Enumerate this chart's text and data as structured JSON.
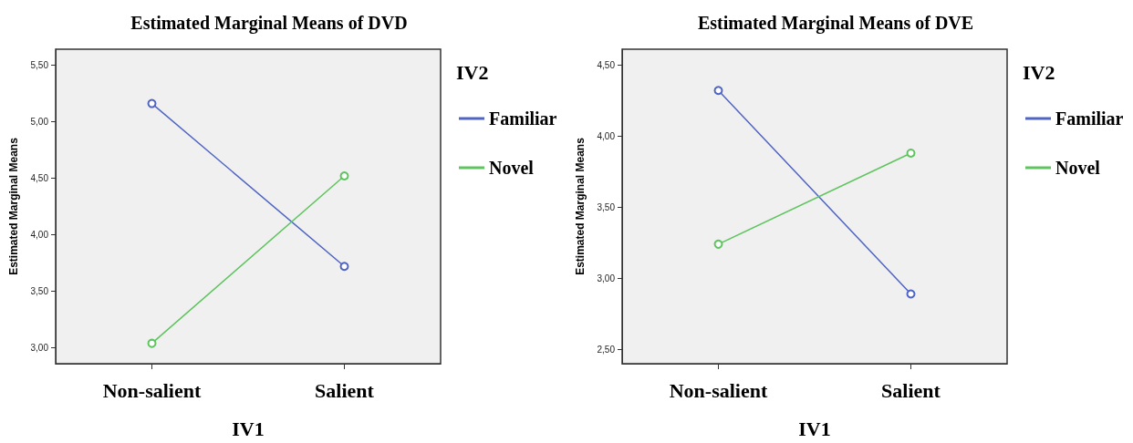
{
  "chart_data": [
    {
      "type": "line",
      "title": "Estimated Marginal Means of DVD",
      "xlabel": "IV1",
      "ylabel": "Estimated Marginal Means",
      "legend_title": "IV2",
      "categories": [
        "Non-salient",
        "Salient"
      ],
      "series": [
        {
          "name": "Familiar",
          "color": "#5064c4",
          "values": [
            5.16,
            3.72
          ]
        },
        {
          "name": "Novel",
          "color": "#5ec45e",
          "values": [
            3.04,
            4.52
          ]
        }
      ],
      "ylim": [
        2.86,
        5.64
      ],
      "yticks": [
        {
          "value": 3,
          "label": "3,00"
        },
        {
          "value": 3.5,
          "label": "3,50"
        },
        {
          "value": 4,
          "label": "4,00"
        },
        {
          "value": 4.5,
          "label": "4,50"
        },
        {
          "value": 5,
          "label": "5,00"
        },
        {
          "value": 5.5,
          "label": "5,50"
        }
      ],
      "grid": false,
      "legend": "right",
      "marker": "circle",
      "line_style": "solid"
    },
    {
      "type": "line",
      "title": "Estimated Marginal Means of DVE",
      "xlabel": "IV1",
      "ylabel": "Estimated Marginal Means",
      "legend_title": "IV2",
      "categories": [
        "Non-salient",
        "Salient"
      ],
      "series": [
        {
          "name": "Familiar",
          "color": "#5064c4",
          "values": [
            4.32,
            2.89
          ]
        },
        {
          "name": "Novel",
          "color": "#5ec45e",
          "values": [
            3.24,
            3.88
          ]
        }
      ],
      "ylim": [
        2.4,
        4.61
      ],
      "yticks": [
        {
          "value": 2.5,
          "label": "2,50"
        },
        {
          "value": 3,
          "label": "3,00"
        },
        {
          "value": 3.5,
          "label": "3,50"
        },
        {
          "value": 4,
          "label": "4,00"
        },
        {
          "value": 4.5,
          "label": "4,50"
        }
      ],
      "grid": false,
      "legend": "right",
      "marker": "circle",
      "line_style": "solid"
    }
  ]
}
